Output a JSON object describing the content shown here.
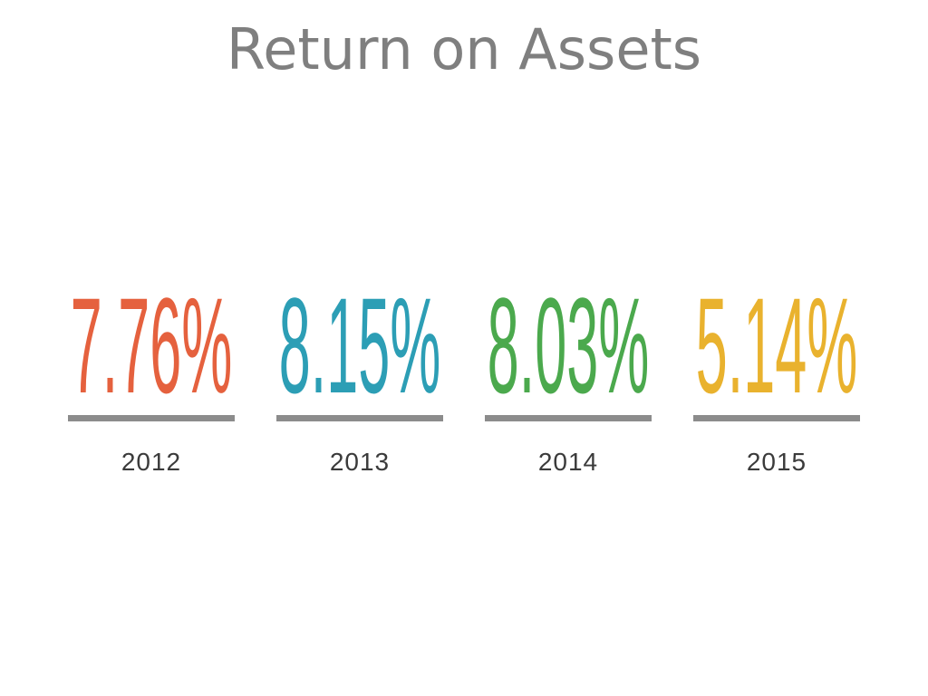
{
  "title": "Return on Assets",
  "chart_data": {
    "type": "table",
    "title": "Return on Assets",
    "categories": [
      "2012",
      "2013",
      "2014",
      "2015"
    ],
    "values": [
      7.76,
      8.15,
      8.03,
      5.14
    ],
    "value_labels": [
      "7.76%",
      "8.15%",
      "8.03%",
      "5.14%"
    ],
    "layout": "kpi-row-of-four",
    "series_colors": [
      "#E5613E",
      "#2C9EB5",
      "#4BA94D",
      "#E9B22E"
    ]
  },
  "styles": {
    "background": "#FFFFFF",
    "title_color": "#7F7F7F",
    "rule_color": "#8C8C8C",
    "year_label_color": "#3B3B3B"
  }
}
